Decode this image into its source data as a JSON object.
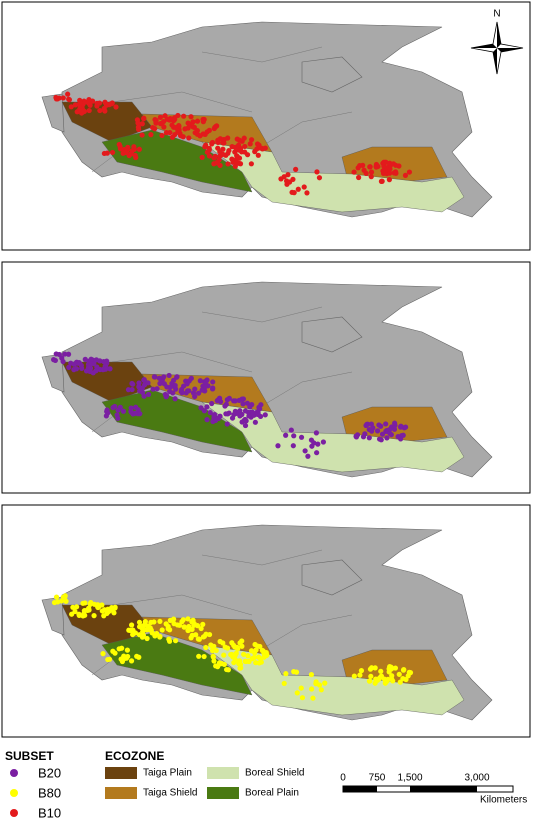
{
  "north_arrow": "N",
  "legend": {
    "subset": {
      "title": "SUBSET",
      "items": [
        {
          "label": "B20",
          "color": "#7b1fa2"
        },
        {
          "label": "B80",
          "color": "#ffff00"
        },
        {
          "label": "B10",
          "color": "#e31a1c"
        }
      ]
    },
    "ecozone": {
      "title": "ECOZONE",
      "items": [
        {
          "label": "Taiga Plain",
          "color": "#6b420f"
        },
        {
          "label": "Taiga Shield",
          "color": "#b37a1e"
        },
        {
          "label": "Boreal Shield",
          "color": "#cfe2ae"
        },
        {
          "label": "Boreal Plain",
          "color": "#4a7a12"
        }
      ]
    }
  },
  "scale_bar": {
    "labels": [
      "0",
      "750",
      "1,500",
      "3,000"
    ],
    "unit": "Kilometers"
  }
}
